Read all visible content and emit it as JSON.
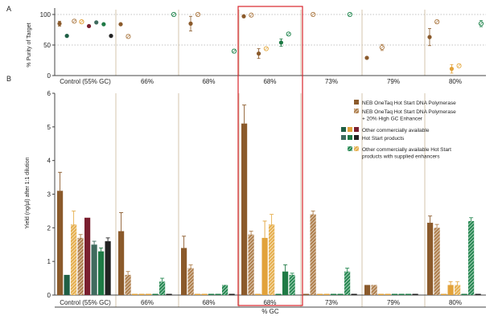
{
  "panel_labels": [
    "A",
    "B"
  ],
  "colors": {
    "neb": "#8b5a2b",
    "neb_gc": "#b0814f",
    "dk_green": "#1f5f45",
    "gold": "#e2a23a",
    "maroon": "#7a1f2f",
    "slate_green": "#3f6b5e",
    "green": "#1e7a45",
    "black": "#222222",
    "enh_green": "#2a8a55",
    "enh_gold": "#e6b050",
    "highlight": "#d9262c"
  },
  "chart_data": [
    {
      "type": "scatter",
      "panel": "A",
      "ylabel": "% Purity of Target",
      "ylim": [
        0,
        100
      ],
      "yticks": [
        0,
        50,
        100
      ],
      "categories": [
        "Control (55% GC)",
        "66%",
        "68%",
        "68%",
        "73%",
        "79%",
        "80%"
      ],
      "points": [
        {
          "group": 0,
          "slot": 0,
          "y": 85,
          "err": 4,
          "series": "neb",
          "hollow": false
        },
        {
          "group": 0,
          "slot": 1,
          "y": 65,
          "err": 0,
          "series": "dk_green",
          "hollow": false
        },
        {
          "group": 0,
          "slot": 2,
          "y": 89,
          "err": 0,
          "series": "neb_gc",
          "hollow": true
        },
        {
          "group": 0,
          "slot": 3,
          "y": 88,
          "err": 0,
          "series": "gold",
          "hollow": true
        },
        {
          "group": 0,
          "slot": 4,
          "y": 81,
          "err": 0,
          "series": "maroon",
          "hollow": false
        },
        {
          "group": 0,
          "slot": 5,
          "y": 87,
          "err": 0,
          "series": "slate_green",
          "hollow": false
        },
        {
          "group": 0,
          "slot": 6,
          "y": 84,
          "err": 0,
          "series": "green",
          "hollow": false
        },
        {
          "group": 0,
          "slot": 7,
          "y": 65,
          "err": 0,
          "series": "black",
          "hollow": false
        },
        {
          "group": 1,
          "slot": 0,
          "y": 84,
          "err": 0,
          "series": "neb",
          "hollow": false
        },
        {
          "group": 1,
          "slot": 1,
          "y": 64,
          "err": 3,
          "series": "neb_gc",
          "hollow": true
        },
        {
          "group": 1,
          "slot": 7,
          "y": 100,
          "err": 0,
          "series": "enh_green",
          "hollow": true
        },
        {
          "group": 2,
          "slot": 1,
          "y": 85,
          "err": 12,
          "series": "neb",
          "hollow": false
        },
        {
          "group": 2,
          "slot": 2,
          "y": 100,
          "err": 0,
          "series": "neb_gc",
          "hollow": true
        },
        {
          "group": 2,
          "slot": 7,
          "y": 40,
          "err": 3,
          "series": "enh_green",
          "hollow": true
        },
        {
          "group": 3,
          "slot": 0,
          "y": 97,
          "err": 0,
          "series": "neb",
          "hollow": false
        },
        {
          "group": 3,
          "slot": 1,
          "y": 99,
          "err": 0,
          "series": "neb_gc",
          "hollow": true
        },
        {
          "group": 3,
          "slot": 2,
          "y": 36,
          "err": 8,
          "series": "neb",
          "hollow": false
        },
        {
          "group": 3,
          "slot": 3,
          "y": 44,
          "err": 0,
          "series": "enh_gold",
          "hollow": true
        },
        {
          "group": 3,
          "slot": 5,
          "y": 54,
          "err": 6,
          "series": "green",
          "hollow": false
        },
        {
          "group": 3,
          "slot": 6,
          "y": 68,
          "err": 2,
          "series": "enh_green",
          "hollow": true
        },
        {
          "group": 4,
          "slot": 1,
          "y": 100,
          "err": 0,
          "series": "neb_gc",
          "hollow": true
        },
        {
          "group": 4,
          "slot": 6,
          "y": 100,
          "err": 0,
          "series": "enh_green",
          "hollow": true
        },
        {
          "group": 5,
          "slot": 0,
          "y": 29,
          "err": 0,
          "series": "neb",
          "hollow": false
        },
        {
          "group": 5,
          "slot": 2,
          "y": 46,
          "err": 5,
          "series": "neb_gc",
          "hollow": true
        },
        {
          "group": 6,
          "slot": 0,
          "y": 63,
          "err": 14,
          "series": "neb",
          "hollow": false
        },
        {
          "group": 6,
          "slot": 1,
          "y": 88,
          "err": 3,
          "series": "neb_gc",
          "hollow": true
        },
        {
          "group": 6,
          "slot": 3,
          "y": 11,
          "err": 7,
          "series": "gold",
          "hollow": false
        },
        {
          "group": 6,
          "slot": 4,
          "y": 16,
          "err": 3,
          "series": "enh_gold",
          "hollow": true
        },
        {
          "group": 6,
          "slot": 7,
          "y": 85,
          "err": 5,
          "series": "enh_green",
          "hollow": true
        }
      ]
    },
    {
      "type": "bar",
      "panel": "B",
      "xlabel": "% GC",
      "ylabel": "Yield (ng/µl) after 1:1 dilution",
      "ylim": [
        0,
        6
      ],
      "yticks": [
        0,
        1,
        2,
        3,
        4,
        5,
        6
      ],
      "categories": [
        "Control (55% GC)",
        "66%",
        "68%",
        "68%",
        "73%",
        "79%",
        "80%"
      ],
      "highlight_group": 3,
      "bars": [
        [
          {
            "s": "neb",
            "v": 3.1,
            "e": 0.55
          },
          {
            "s": "dk_green",
            "v": 0.6,
            "e": 0
          },
          {
            "s": "enh_gold",
            "v": 2.1,
            "e": 0.4
          },
          {
            "s": "neb_gc",
            "v": 1.7,
            "e": 0.1
          },
          {
            "s": "maroon",
            "v": 2.3,
            "e": 0
          },
          {
            "s": "slate_green",
            "v": 1.5,
            "e": 0.1
          },
          {
            "s": "green",
            "v": 1.3,
            "e": 0.1
          },
          {
            "s": "black",
            "v": 1.6,
            "e": 0.1
          }
        ],
        [
          {
            "s": "neb",
            "v": 1.9,
            "e": 0.55
          },
          {
            "s": "neb_gc",
            "v": 0.6,
            "e": 0.1
          },
          {
            "s": "gold",
            "v": 0.02,
            "e": 0
          },
          {
            "s": "gold",
            "v": 0.02,
            "e": 0
          },
          {
            "s": "gold",
            "v": 0.02,
            "e": 0
          },
          {
            "s": "green",
            "v": 0.02,
            "e": 0
          },
          {
            "s": "enh_green",
            "v": 0.4,
            "e": 0.1
          },
          {
            "s": "black",
            "v": 0.02,
            "e": 0
          }
        ],
        [
          {
            "s": "neb",
            "v": 1.4,
            "e": 0.35
          },
          {
            "s": "neb_gc",
            "v": 0.8,
            "e": 0.1
          },
          {
            "s": "gold",
            "v": 0.02,
            "e": 0
          },
          {
            "s": "gold",
            "v": 0.02,
            "e": 0
          },
          {
            "s": "green",
            "v": 0.02,
            "e": 0
          },
          {
            "s": "green",
            "v": 0.02,
            "e": 0
          },
          {
            "s": "enh_green",
            "v": 0.3,
            "e": 0
          },
          {
            "s": "black",
            "v": 0.02,
            "e": 0
          }
        ],
        [
          {
            "s": "neb",
            "v": 5.1,
            "e": 0.55
          },
          {
            "s": "neb_gc",
            "v": 1.8,
            "e": 0.1
          },
          {
            "s": "gold",
            "v": 0.02,
            "e": 0
          },
          {
            "s": "gold",
            "v": 1.7,
            "e": 0.5
          },
          {
            "s": "enh_gold",
            "v": 2.1,
            "e": 0.3
          },
          {
            "s": "green",
            "v": 0.02,
            "e": 0
          },
          {
            "s": "green",
            "v": 0.7,
            "e": 0.2
          },
          {
            "s": "enh_green",
            "v": 0.6,
            "e": 0.05
          }
        ],
        [
          {
            "s": "neb",
            "v": 0.02,
            "e": 0
          },
          {
            "s": "neb_gc",
            "v": 2.4,
            "e": 0.1
          },
          {
            "s": "gold",
            "v": 0.02,
            "e": 0
          },
          {
            "s": "gold",
            "v": 0.02,
            "e": 0
          },
          {
            "s": "green",
            "v": 0.02,
            "e": 0
          },
          {
            "s": "green",
            "v": 0.02,
            "e": 0
          },
          {
            "s": "enh_green",
            "v": 0.7,
            "e": 0.1
          },
          {
            "s": "black",
            "v": 0.02,
            "e": 0
          }
        ],
        [
          {
            "s": "neb",
            "v": 0.3,
            "e": 0
          },
          {
            "s": "neb_gc",
            "v": 0.3,
            "e": 0
          },
          {
            "s": "gold",
            "v": 0.02,
            "e": 0
          },
          {
            "s": "gold",
            "v": 0.02,
            "e": 0
          },
          {
            "s": "green",
            "v": 0.02,
            "e": 0
          },
          {
            "s": "green",
            "v": 0.02,
            "e": 0
          },
          {
            "s": "green",
            "v": 0.02,
            "e": 0
          },
          {
            "s": "black",
            "v": 0.02,
            "e": 0
          }
        ],
        [
          {
            "s": "neb",
            "v": 2.15,
            "e": 0.2
          },
          {
            "s": "neb_gc",
            "v": 2.0,
            "e": 0.1
          },
          {
            "s": "gold",
            "v": 0.02,
            "e": 0
          },
          {
            "s": "gold",
            "v": 0.3,
            "e": 0.1
          },
          {
            "s": "enh_gold",
            "v": 0.3,
            "e": 0.1
          },
          {
            "s": "green",
            "v": 0.02,
            "e": 0
          },
          {
            "s": "enh_green",
            "v": 2.2,
            "e": 0.1
          },
          {
            "s": "black",
            "v": 0.02,
            "e": 0
          }
        ]
      ],
      "legend": {
        "items": [
          {
            "swatches": [
              "neb"
            ],
            "text": [
              "NEB OneTaq Hot Start DNA Polymerase"
            ]
          },
          {
            "swatches": [
              "neb_gc"
            ],
            "text": [
              "NEB OneTaq Hot Start DNA Polymerase",
              "+ 20% High GC Enhancer"
            ]
          },
          {
            "swatches": [
              "dk_green",
              "gold",
              "maroon"
            ],
            "text": [
              "Other commercially available"
            ]
          },
          {
            "swatches": [
              "slate_green",
              "green",
              "black"
            ],
            "text": [
              "Hot Start products"
            ]
          },
          {
            "swatches": [
              "enh_green",
              "enh_gold"
            ],
            "text": [
              "Other commercially available Hot Start",
              "products with supplied enhancers"
            ]
          }
        ]
      }
    }
  ]
}
